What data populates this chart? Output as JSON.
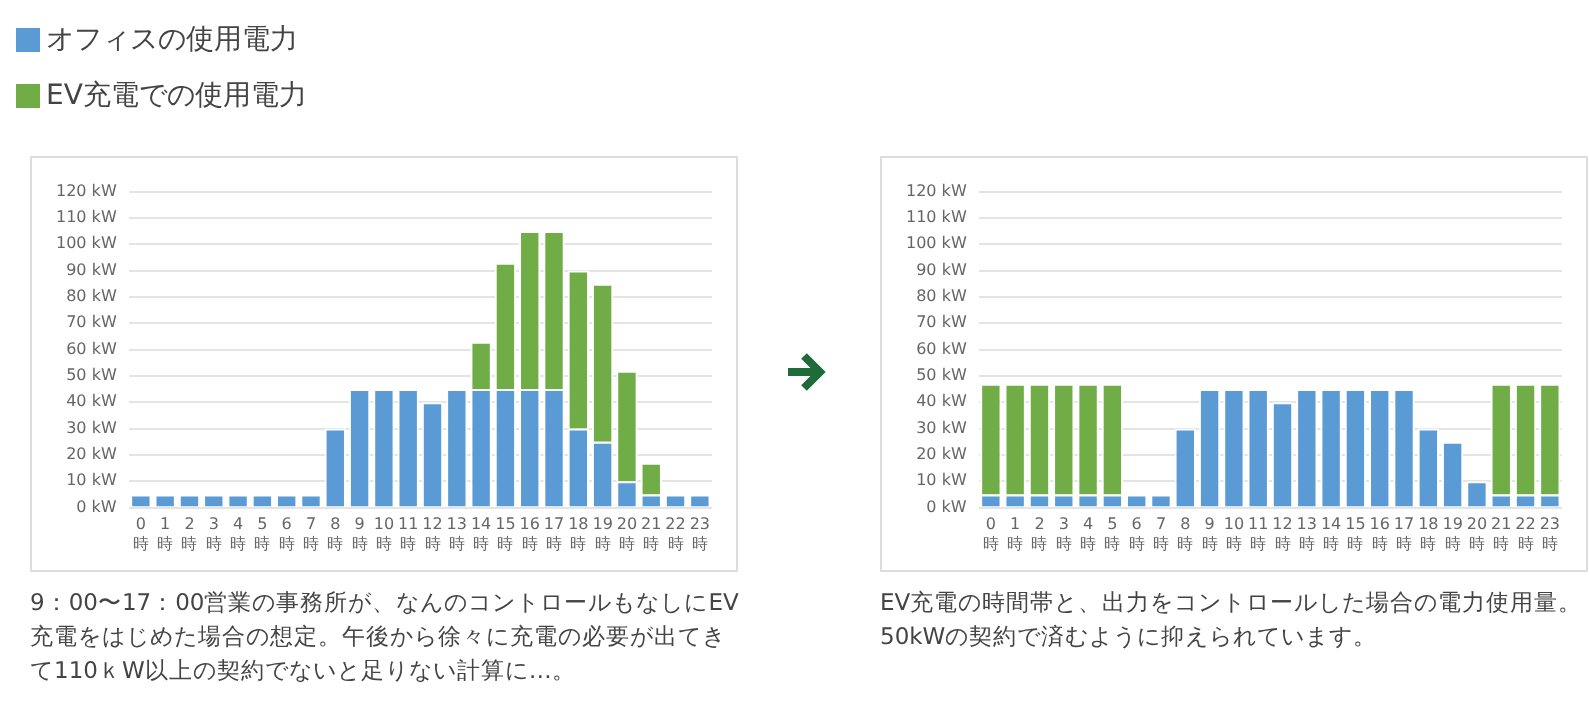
{
  "chart_data": [
    {
      "type": "bar",
      "stacked": true,
      "legend": "top left",
      "grid": "y",
      "categories": [
        "0時",
        "1時",
        "2時",
        "3時",
        "4時",
        "5時",
        "6時",
        "7時",
        "8時",
        "9時",
        "10時",
        "11時",
        "12時",
        "13時",
        "14時",
        "15時",
        "16時",
        "17時",
        "18時",
        "19時",
        "20時",
        "21時",
        "22時",
        "23時"
      ],
      "series": [
        {
          "name": "オフィスの使用電力",
          "color": "#5b9bd5",
          "values": [
            5,
            5,
            5,
            5,
            5,
            5,
            5,
            5,
            30,
            45,
            45,
            45,
            40,
            45,
            45,
            45,
            45,
            45,
            30,
            25,
            10,
            5,
            5,
            5
          ]
        },
        {
          "name": "EV充電での使用電力",
          "color": "#70ad47",
          "values": [
            0,
            0,
            0,
            0,
            0,
            0,
            0,
            0,
            0,
            0,
            0,
            0,
            0,
            0,
            18,
            48,
            60,
            60,
            60,
            60,
            42,
            12,
            0,
            0
          ]
        }
      ],
      "ylim": [
        0,
        120
      ],
      "yticks": [
        {
          "value": 0,
          "label": "0 kW"
        },
        {
          "value": 10,
          "label": "10 kW"
        },
        {
          "value": 20,
          "label": "20 kW"
        },
        {
          "value": 30,
          "label": "30 kW"
        },
        {
          "value": 40,
          "label": "40 kW"
        },
        {
          "value": 50,
          "label": "50 kW"
        },
        {
          "value": 60,
          "label": "60 kW"
        },
        {
          "value": 70,
          "label": "70 kW"
        },
        {
          "value": 80,
          "label": "80 kW"
        },
        {
          "value": 90,
          "label": "90 kW"
        },
        {
          "value": 100,
          "label": "100 kW"
        },
        {
          "value": 110,
          "label": "110 kW"
        },
        {
          "value": 120,
          "label": "120 kW"
        }
      ],
      "annotations": [
        "9：00〜17：00営業の事務所が、なんのコントロールもなしにEV充電をはじめた場合の想定。午後から徐々に充電の必要が出てきて110ｋW以上の契約でないと足りない計算に…。"
      ]
    },
    {
      "type": "bar",
      "stacked": true,
      "grid": "y",
      "categories": [
        "0時",
        "1時",
        "2時",
        "3時",
        "4時",
        "5時",
        "6時",
        "7時",
        "8時",
        "9時",
        "10時",
        "11時",
        "12時",
        "13時",
        "14時",
        "15時",
        "16時",
        "17時",
        "18時",
        "19時",
        "20時",
        "21時",
        "22時",
        "23時"
      ],
      "series": [
        {
          "color": "#5b9bd5",
          "values": [
            5,
            5,
            5,
            5,
            5,
            5,
            5,
            5,
            30,
            45,
            45,
            45,
            40,
            45,
            45,
            45,
            45,
            45,
            30,
            25,
            10,
            5,
            5,
            5
          ]
        },
        {
          "color": "#70ad47",
          "values": [
            42,
            42,
            42,
            42,
            42,
            42,
            0,
            0,
            0,
            0,
            0,
            0,
            0,
            0,
            0,
            0,
            0,
            0,
            0,
            0,
            0,
            42,
            42,
            42
          ]
        }
      ],
      "ylim": [
        0,
        120
      ],
      "yticks": [
        {
          "value": 0,
          "label": "0 kW"
        },
        {
          "value": 10,
          "label": "10 kW"
        },
        {
          "value": 20,
          "label": "20 kW"
        },
        {
          "value": 30,
          "label": "30 kW"
        },
        {
          "value": 40,
          "label": "40 kW"
        },
        {
          "value": 50,
          "label": "50 kW"
        },
        {
          "value": 60,
          "label": "60 kW"
        },
        {
          "value": 70,
          "label": "70 kW"
        },
        {
          "value": 80,
          "label": "80 kW"
        },
        {
          "value": 90,
          "label": "90 kW"
        },
        {
          "value": 100,
          "label": "100 kW"
        },
        {
          "value": 110,
          "label": "110 kW"
        },
        {
          "value": 120,
          "label": "120 kW"
        }
      ],
      "annotations": [
        "EV充電の時間帯と、出力をコントロールした場合の電力使用量。50kWの契約で済むように抑えられています。"
      ]
    }
  ]
}
